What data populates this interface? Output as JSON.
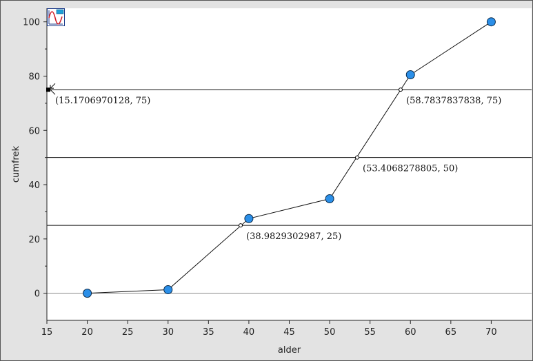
{
  "chart_data": {
    "type": "line",
    "xlabel": "alder",
    "ylabel": "cumfrek",
    "xlim": [
      15,
      75
    ],
    "ylim": [
      -10,
      105
    ],
    "x_ticks": [
      15,
      20,
      25,
      30,
      35,
      40,
      45,
      50,
      55,
      60,
      65,
      70
    ],
    "y_ticks": [
      0,
      20,
      40,
      60,
      80,
      100
    ],
    "y_minor_ticks": [
      10,
      30,
      50,
      70,
      90
    ],
    "grid": false,
    "series": [
      {
        "x": [
          20,
          30,
          40,
          50,
          60,
          70
        ],
        "y": [
          0,
          1.3,
          27.5,
          34.8,
          80.5,
          100
        ],
        "marker_color": "#2b8fe8"
      }
    ],
    "hlines": [
      {
        "y": 25
      },
      {
        "y": 50
      },
      {
        "y": 75
      }
    ],
    "annotations": [
      {
        "x": 38.9829302987,
        "y": 25,
        "label": "(38.9829302987, 25)"
      },
      {
        "x": 53.4068278805,
        "y": 50,
        "label": "(53.4068278805, 50)"
      },
      {
        "x": 58.7837837838,
        "y": 75,
        "label": "(58.7837837838, 75)"
      },
      {
        "x": 15.1706970128,
        "y": 75,
        "label": "(15.1706970128, 75)"
      }
    ]
  },
  "toolbar": {
    "icon": "graphs-app-icon"
  },
  "colors": {
    "plot_background": "#ffffff",
    "frame_background": "#e3e3e3",
    "line": "#111111",
    "marker_fill": "#2b8fe8",
    "marker_stroke": "#0a2a4a",
    "zero_line": "#888888"
  }
}
